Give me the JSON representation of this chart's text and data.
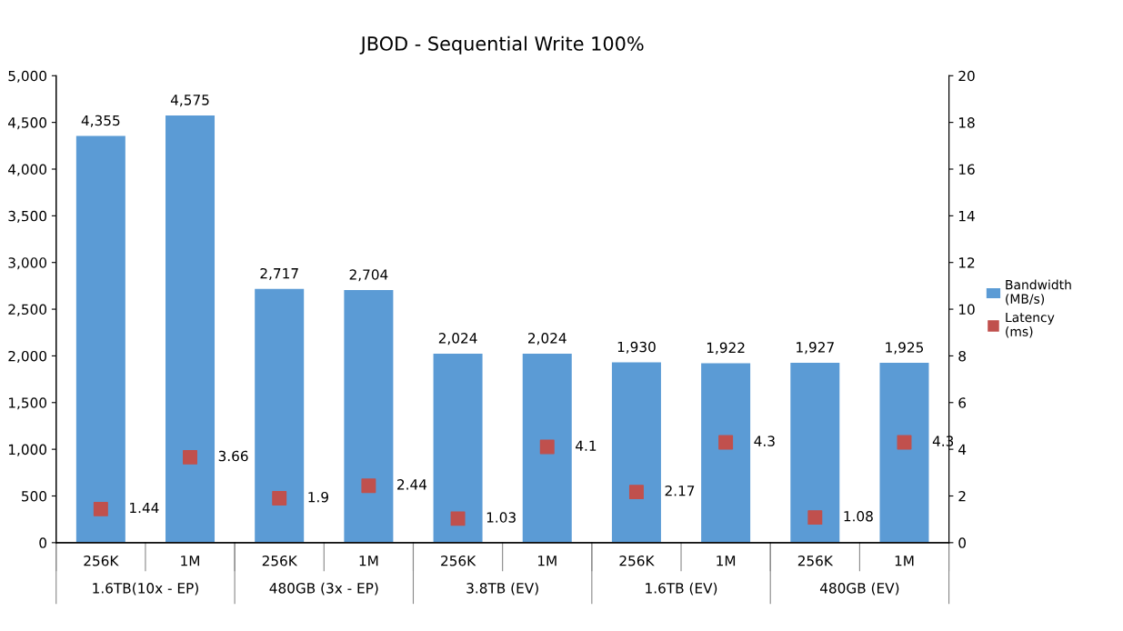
{
  "chart_data": {
    "type": "bar",
    "title": "JBOD - Sequential Write 100%",
    "categories": [
      "256K",
      "1M",
      "256K",
      "1M",
      "256K",
      "1M",
      "256K",
      "1M",
      "256K",
      "1M"
    ],
    "series": [
      {
        "name": "Bandwidth (MB/s)",
        "color": "#5b9bd5",
        "values": [
          4355,
          4575,
          2717,
          2704,
          2024,
          2024,
          1930,
          1922,
          1927,
          1925
        ],
        "value_labels": [
          "4,355",
          "4,575",
          "2,717",
          "2,704",
          "2,024",
          "2,024",
          "1,930",
          "1,922",
          "1,927",
          "1,925"
        ]
      },
      {
        "name": "Latency (ms)",
        "type": "scatter",
        "axis": "y2",
        "marker": "square",
        "color": "#c0504d",
        "values": [
          1.44,
          3.66,
          1.9,
          2.44,
          1.03,
          4.1,
          2.17,
          4.3,
          1.08,
          4.3
        ],
        "value_labels": [
          "1.44",
          "3.66",
          "1.9",
          "2.44",
          "1.03",
          "4.1",
          "2.17",
          "4.3",
          "1.08",
          "4.3"
        ]
      }
    ],
    "annotations": [
      "1.6TB(10x - EP)",
      "480GB (3x - EP)",
      "3.8TB (EV)",
      "1.6TB (EV)",
      "480GB (EV)"
    ],
    "ylim": [
      0,
      5000
    ],
    "yticks": [
      {
        "value": 0,
        "label": "0"
      },
      {
        "value": 500,
        "label": "500"
      },
      {
        "value": 1000,
        "label": "1,000"
      },
      {
        "value": 1500,
        "label": "1,500"
      },
      {
        "value": 2000,
        "label": "2,000"
      },
      {
        "value": 2500,
        "label": "2,500"
      },
      {
        "value": 3000,
        "label": "3,000"
      },
      {
        "value": 3500,
        "label": "3,500"
      },
      {
        "value": 4000,
        "label": "4,000"
      },
      {
        "value": 4500,
        "label": "4,500"
      },
      {
        "value": 5000,
        "label": "5,000"
      }
    ],
    "y2lim": [
      0,
      20
    ],
    "y2ticks": [
      0,
      2,
      4,
      6,
      8,
      10,
      12,
      14,
      16,
      18,
      20
    ],
    "legend": "right"
  }
}
